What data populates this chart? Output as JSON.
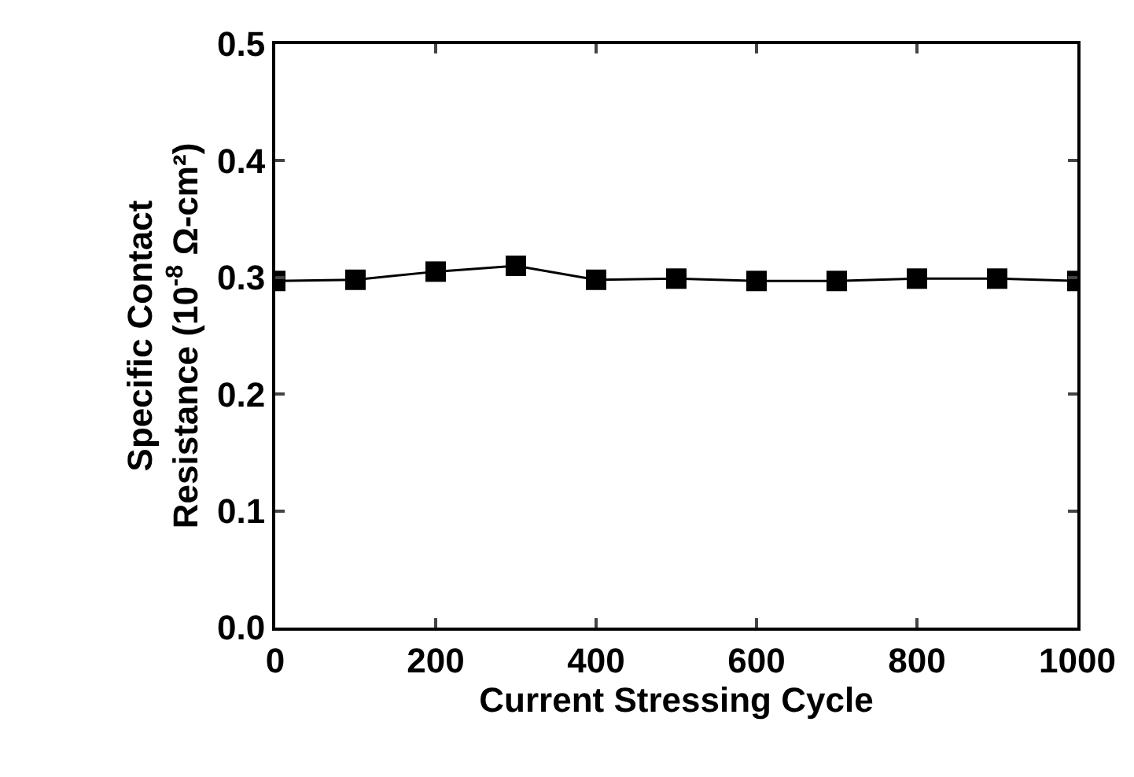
{
  "chart_data": {
    "type": "line",
    "xlabel": "Current Stressing Cycle",
    "ylabel": "Specific Contact\nResistance (10$^{-8}$ Ω-cm²)",
    "x": [
      0,
      100,
      200,
      300,
      400,
      500,
      600,
      700,
      800,
      900,
      1000
    ],
    "series": [
      {
        "color": "#000000",
        "values": [
          0.297,
          0.298,
          0.305,
          0.31,
          0.298,
          0.299,
          0.297,
          0.297,
          0.299,
          0.299,
          0.297
        ]
      }
    ],
    "xlim": [
      0,
      1000
    ],
    "xticks": [
      0,
      200,
      400,
      600,
      800,
      1000
    ],
    "ylim": [
      0.0,
      0.5
    ],
    "yticks": [
      {
        "value": 0,
        "label": "0.0"
      },
      0.1,
      0.2,
      0.3,
      0.4,
      0.5
    ],
    "marker": "square",
    "line_style": "solid"
  }
}
